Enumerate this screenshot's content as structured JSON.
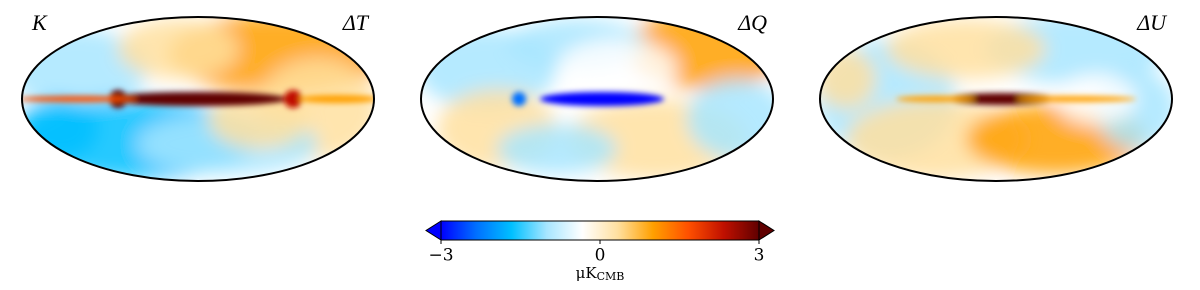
{
  "chart_data": {
    "type": "mollweide",
    "panels": [
      {
        "left_label": "K",
        "right_label": "ΔT"
      },
      {
        "right_label": "ΔQ"
      },
      {
        "right_label": "ΔU"
      }
    ],
    "colorbar": {
      "clim": [
        -3,
        3
      ],
      "ticks": [
        {
          "value": -3,
          "label": "−3"
        },
        0,
        3
      ],
      "colors": [
        "#0000ff",
        "#0070ff",
        "#00c0ff",
        "#a8e6ff",
        "#ffffff",
        "#ffe0a0",
        "#ffa000",
        "#ff5000",
        "#c01000",
        "#600000"
      ],
      "unit": "μK",
      "unit_subscript": "CMB"
    }
  }
}
